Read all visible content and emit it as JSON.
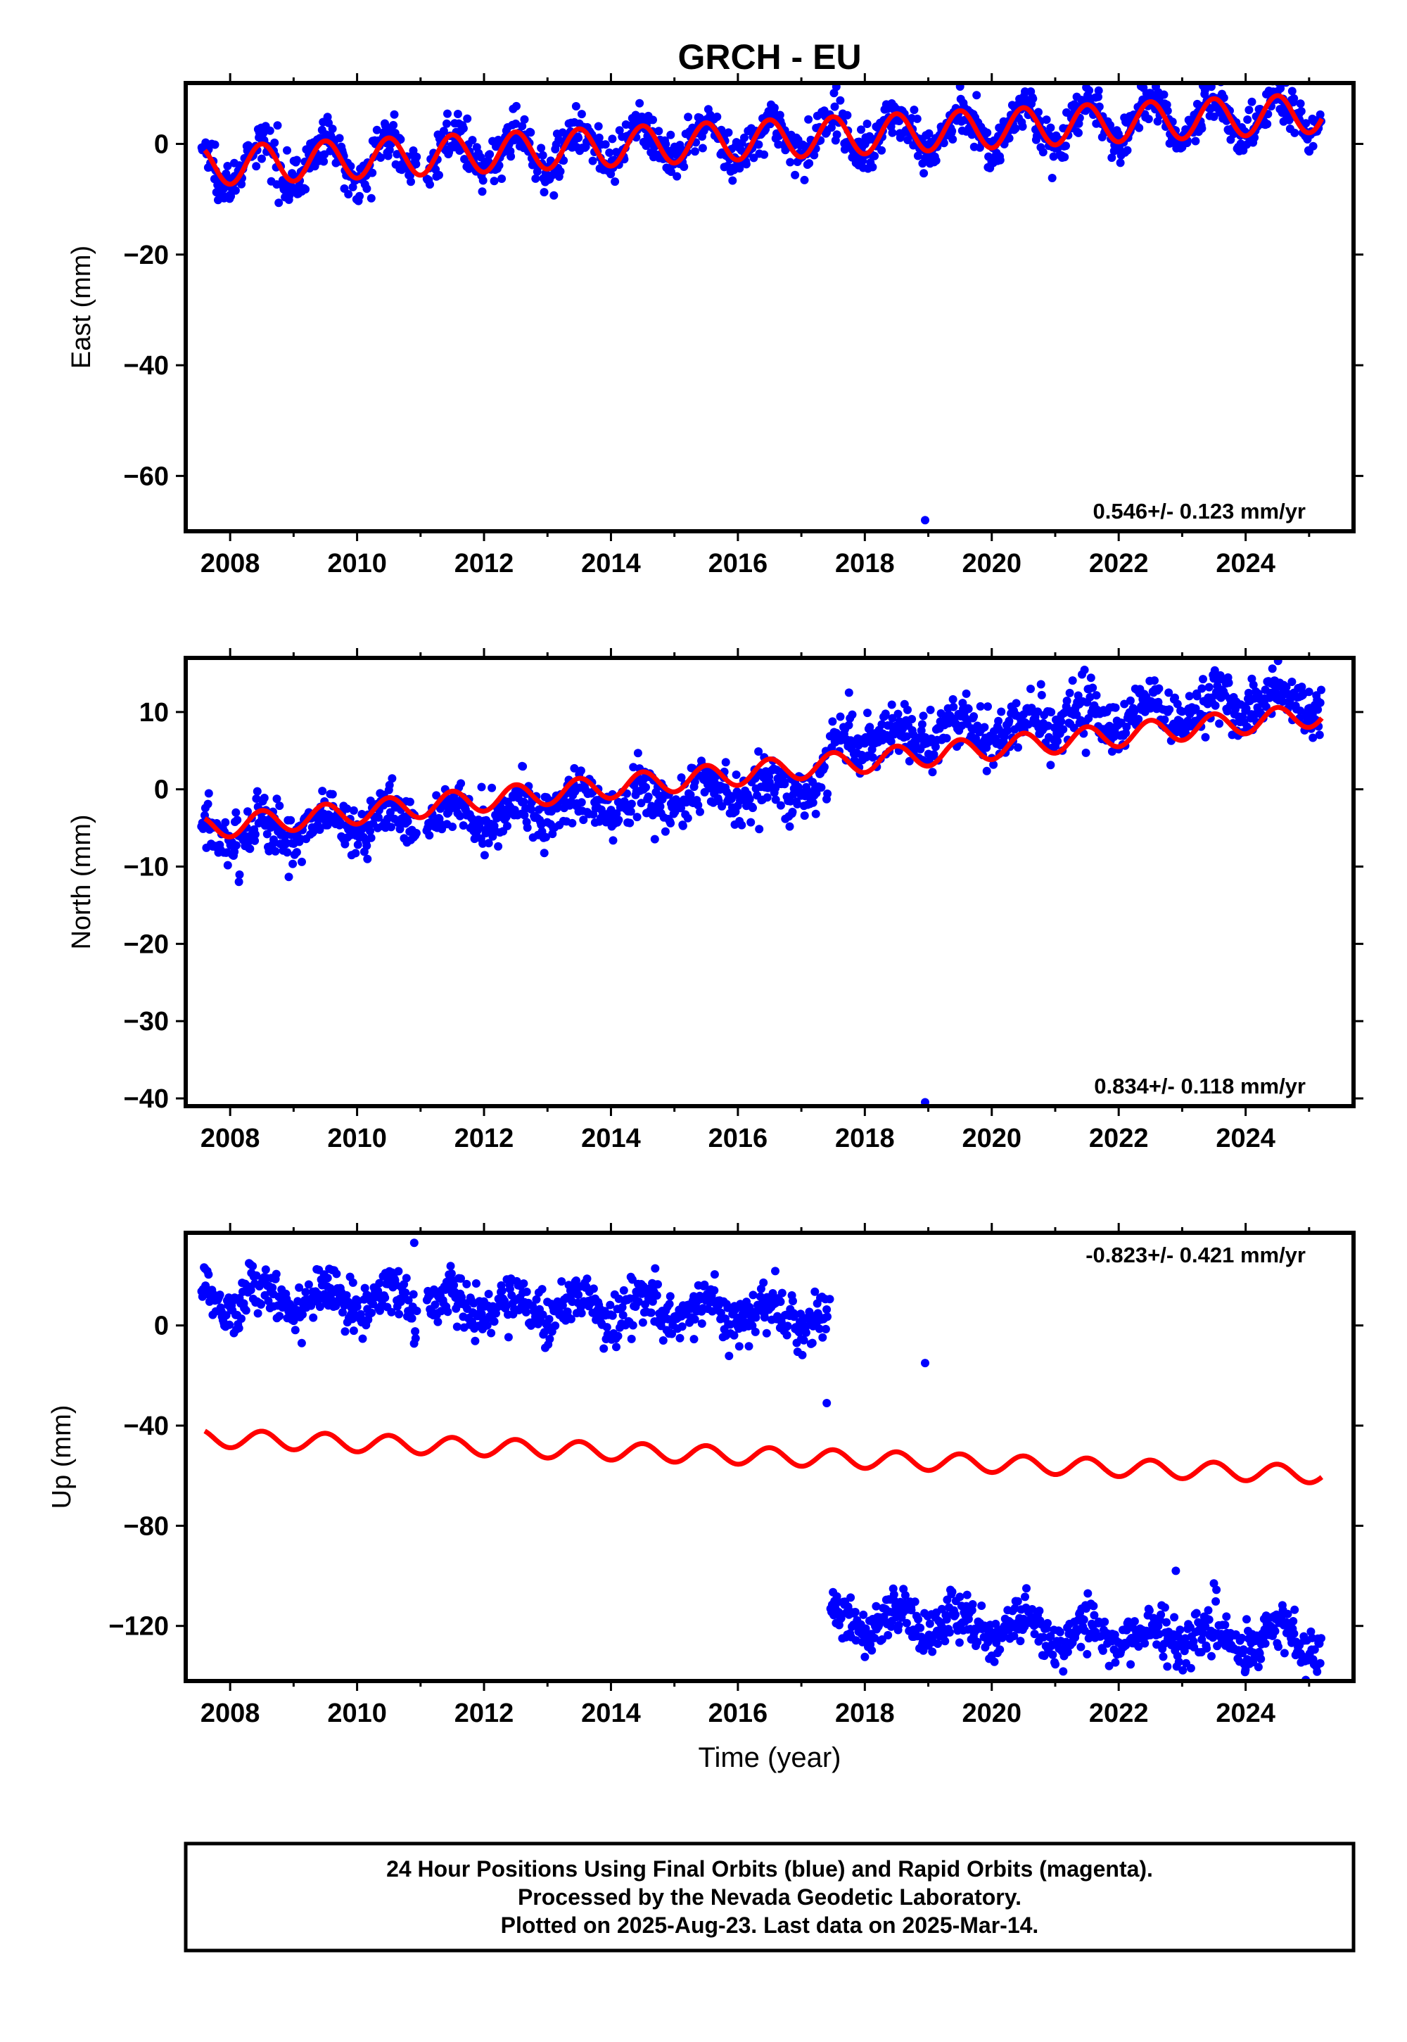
{
  "title": "GRCH - EU",
  "caption": {
    "line1": "24 Hour Positions Using Final Orbits (blue) and Rapid Orbits (magenta).",
    "line2": "Processed by the Nevada Geodetic Laboratory.",
    "line3": "Plotted on 2025-Aug-23. Last data on 2025-Mar-14."
  },
  "colors": {
    "final_points": "#0000ff",
    "model_line": "#ff0000",
    "frame": "#000000"
  },
  "chart_data": [
    {
      "type": "scatter",
      "ylabel": "East (mm)",
      "rate_text": "0.546+/- 0.123 mm/yr",
      "rate_position": "bottom-right",
      "xlim": [
        2007.3,
        2025.7
      ],
      "ylim": [
        -70,
        11
      ],
      "xticks": [
        2008,
        2010,
        2012,
        2014,
        2016,
        2018,
        2020,
        2022,
        2024
      ],
      "yticks": [
        0,
        -20,
        -40,
        -60
      ],
      "grid": false,
      "points_series": {
        "name": "Final Orbits",
        "color": "blue",
        "coverage": [
          [
            2007.55,
            2010.95
          ],
          [
            2011.1,
            2017.42
          ],
          [
            2017.45,
            2025.2
          ]
        ],
        "trend": {
          "at_2007_5": -4.0,
          "rate_mm_per_yr": 0.546
        },
        "annual_amplitude": 3.5,
        "scatter": 2.0,
        "outliers": [
          [
            2018.95,
            -68
          ]
        ]
      },
      "model_series": {
        "name": "Model",
        "color": "red",
        "start": 2007.6,
        "end": 2025.2,
        "at_start": -4.0,
        "rate_mm_per_yr": 0.546,
        "annual_amplitude": 3.5
      }
    },
    {
      "type": "scatter",
      "ylabel": "North (mm)",
      "rate_text": "0.834+/- 0.118 mm/yr",
      "rate_position": "bottom-right",
      "xlim": [
        2007.3,
        2025.7
      ],
      "ylim": [
        -41,
        17
      ],
      "xticks": [
        2008,
        2010,
        2012,
        2014,
        2016,
        2018,
        2020,
        2022,
        2024
      ],
      "yticks": [
        10,
        0,
        -10,
        -20,
        -30,
        -40
      ],
      "grid": false,
      "points_series": {
        "name": "Final Orbits",
        "color": "blue",
        "coverage": [
          [
            2007.55,
            2010.95
          ],
          [
            2011.1,
            2017.42
          ],
          [
            2017.45,
            2025.2
          ]
        ],
        "trend_segments": [
          {
            "from": 2007.5,
            "to": 2017.45,
            "start": -6.0,
            "end": 0.5
          },
          {
            "from": 2017.45,
            "to": 2025.2,
            "start": 6.0,
            "end": 12.0
          }
        ],
        "annual_amplitude": 1.5,
        "scatter": 1.8,
        "outliers": [
          [
            2018.95,
            -40.5
          ],
          [
            2017.75,
            12.5
          ],
          [
            2012.6,
            3.0
          ]
        ]
      },
      "model_series": {
        "name": "Model",
        "color": "red",
        "start": 2007.6,
        "end": 2025.2,
        "at_start": -5.0,
        "rate_mm_per_yr": 0.834,
        "annual_amplitude": 1.5
      }
    },
    {
      "type": "scatter",
      "ylabel": "Up (mm)",
      "xlabel": "Time (year)",
      "rate_text": "-0.823+/- 0.421 mm/yr",
      "rate_position": "top-right",
      "xlim": [
        2007.3,
        2025.7
      ],
      "ylim": [
        -142,
        37
      ],
      "xticks": [
        2008,
        2010,
        2012,
        2014,
        2016,
        2018,
        2020,
        2022,
        2024
      ],
      "yticks": [
        0,
        -40,
        -80,
        -120
      ],
      "grid": false,
      "points_series": {
        "name": "Final Orbits",
        "color": "blue",
        "coverage": [
          [
            2007.55,
            2010.95
          ],
          [
            2011.1,
            2017.42
          ],
          [
            2017.45,
            2025.2
          ]
        ],
        "trend_segments": [
          {
            "from": 2007.5,
            "to": 2017.45,
            "start": 12.0,
            "end": 4.0
          },
          {
            "from": 2017.45,
            "to": 2025.2,
            "start": -118.0,
            "end": -126.0
          }
        ],
        "annual_amplitude": 5.0,
        "scatter": 5.0,
        "outliers": [
          [
            2010.9,
            33
          ],
          [
            2017.4,
            -31
          ],
          [
            2018.95,
            -15
          ],
          [
            2022.9,
            -98
          ],
          [
            2023.5,
            -103
          ]
        ]
      },
      "model_series": {
        "name": "Model",
        "color": "red",
        "start": 2007.6,
        "end": 2025.2,
        "at_start": -45.0,
        "rate_mm_per_yr": -0.823,
        "annual_amplitude": 3.5
      }
    }
  ]
}
